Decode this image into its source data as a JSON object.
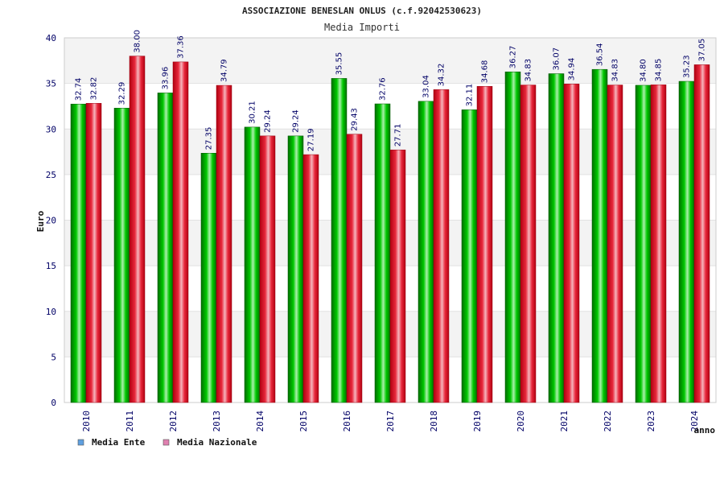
{
  "chart_data": {
    "type": "bar",
    "title": "ASSOCIAZIONE BENESLAN ONLUS (c.f.92042530623)",
    "subtitle": "Media Importi",
    "ylabel": "Euro",
    "xlabel": "anno",
    "ylim": [
      0,
      40
    ],
    "yticks": [
      0,
      5,
      10,
      15,
      20,
      25,
      30,
      35,
      40
    ],
    "grid": true,
    "legend_position": "bottom-left",
    "categories": [
      "2010",
      "2011",
      "2012",
      "2013",
      "2014",
      "2015",
      "2016",
      "2017",
      "2018",
      "2019",
      "2020",
      "2021",
      "2022",
      "2023",
      "2024"
    ],
    "series": [
      {
        "name": "Media Ente",
        "color": "#00bb00",
        "legend_color": "#5fa0e0",
        "values": [
          32.74,
          32.29,
          33.96,
          27.35,
          30.21,
          29.24,
          35.55,
          32.76,
          33.04,
          32.11,
          36.27,
          36.07,
          36.54,
          34.8,
          35.23
        ],
        "labels": [
          "32.74",
          "32.29",
          "33.96",
          "27.35",
          "30.21",
          "29.24",
          "35.55",
          "32.76",
          "33.04",
          "32.11",
          "36.27",
          "36.07",
          "36.54",
          "34.80",
          "35.23"
        ]
      },
      {
        "name": "Media Nazionale",
        "color": "#e8283c",
        "legend_color": "#e080b0",
        "values": [
          32.82,
          38.0,
          37.36,
          34.79,
          29.24,
          27.19,
          29.43,
          27.71,
          34.32,
          34.68,
          34.83,
          34.94,
          34.83,
          34.85,
          37.05
        ],
        "labels": [
          "32.82",
          "38.00",
          "37.36",
          "34.79",
          "29.24",
          "27.19",
          "29.43",
          "27.71",
          "34.32",
          "34.68",
          "34.83",
          "34.94",
          "34.83",
          "34.85",
          "37.05"
        ]
      }
    ]
  }
}
